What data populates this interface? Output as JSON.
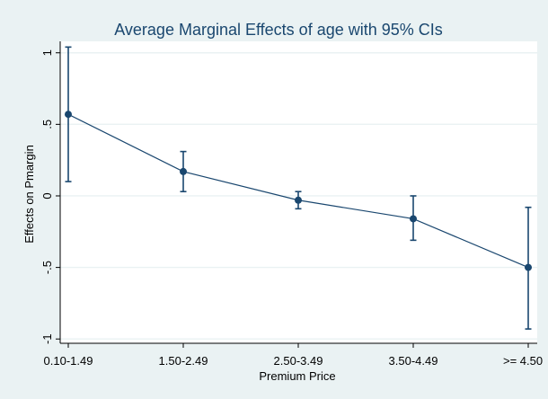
{
  "chart_data": {
    "type": "line",
    "title": "Average Marginal Effects of age with 95% CIs",
    "xlabel": "Premium Price",
    "ylabel": "Effects on Pmargin",
    "categories": [
      "0.10-1.49",
      "1.50-2.49",
      "2.50-3.49",
      "3.50-4.49",
      ">= 4.50"
    ],
    "yticks": [
      1,
      0.5,
      0,
      -0.5,
      -1
    ],
    "ytick_labels": [
      "1",
      ".5",
      "0",
      "-.5",
      "-1"
    ],
    "ylim": [
      -1.03,
      1.08
    ],
    "grid": true,
    "series": [
      {
        "values": [
          0.57,
          0.17,
          -0.03,
          -0.16,
          -0.5
        ],
        "ci_low": [
          0.1,
          0.03,
          -0.09,
          -0.31,
          -0.93
        ],
        "ci_high": [
          1.04,
          0.31,
          0.03,
          0.0,
          -0.08
        ]
      }
    ],
    "colors": {
      "line": "#1a476f",
      "plot_background": "#ffffff",
      "outer_background": "#eaf2f3",
      "grid": "#eaf2f3"
    }
  }
}
